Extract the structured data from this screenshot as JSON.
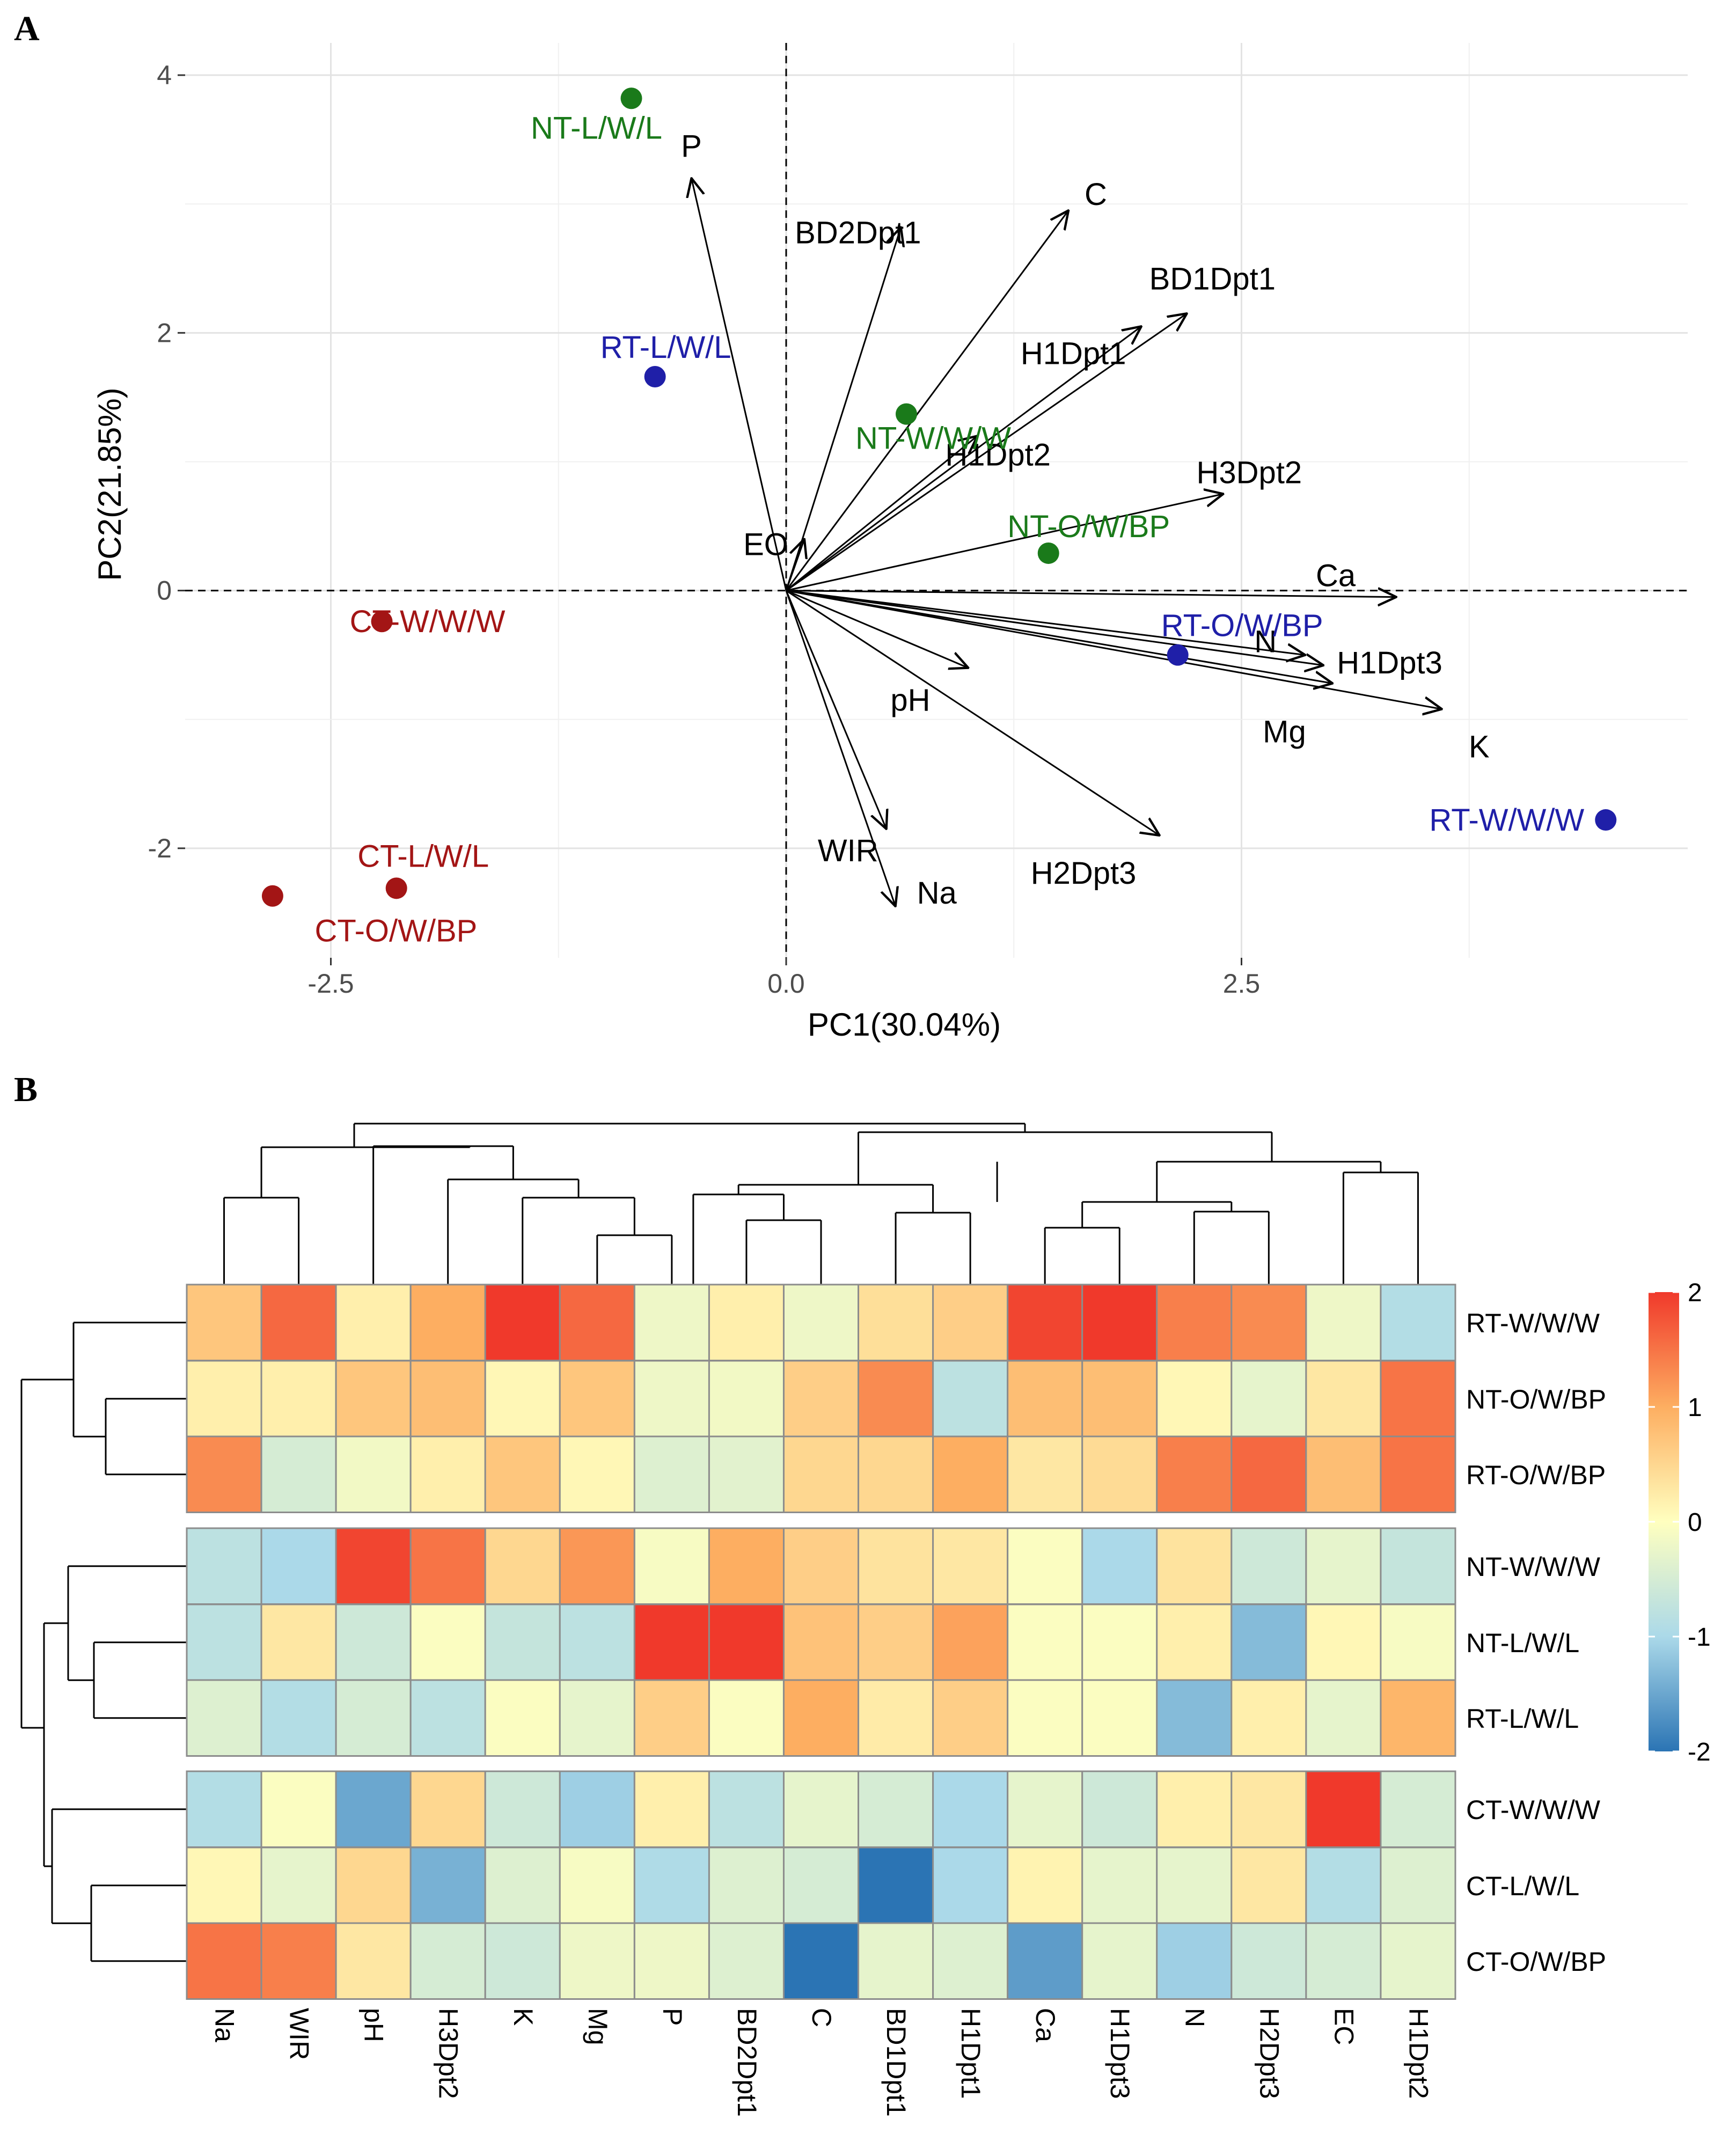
{
  "panel_labels": {
    "a": "A",
    "b": "B"
  },
  "chart_data": [
    {
      "type": "scatter",
      "subtype": "pca-biplot",
      "title": "",
      "xlabel": "PC1(30.04%)",
      "ylabel": "PC2(21.85%)",
      "xlim": [
        -3.3,
        4.95
      ],
      "ylim": [
        -2.85,
        4.25
      ],
      "xticks": [
        -2.5,
        0.0,
        2.5
      ],
      "xtick_labels": [
        "-2.5",
        "0.0",
        "2.5"
      ],
      "yticks": [
        -2,
        0,
        2,
        4
      ],
      "ytick_labels": [
        "-2",
        "0",
        "2",
        "4"
      ],
      "grid": true,
      "zero_lines": "dashed",
      "group_colors": {
        "NT": "#1a7a1a",
        "RT": "#1f1fa8",
        "CT": "#a31515"
      },
      "points": [
        {
          "label": "NT-L/W/L",
          "group": "NT",
          "x": -0.85,
          "y": 3.82
        },
        {
          "label": "RT-L/W/L",
          "group": "RT",
          "x": -0.72,
          "y": 1.66
        },
        {
          "label": "NT-W/W/W",
          "group": "NT",
          "x": 0.66,
          "y": 1.37
        },
        {
          "label": "NT-O/W/BP",
          "group": "NT",
          "x": 1.44,
          "y": 0.29
        },
        {
          "label": "CT-W/W/W",
          "group": "CT",
          "x": -2.22,
          "y": -0.24
        },
        {
          "label": "RT-O/W/BP",
          "group": "RT",
          "x": 2.15,
          "y": -0.5
        },
        {
          "label": "RT-W/W/W",
          "group": "RT",
          "x": 4.5,
          "y": -1.78
        },
        {
          "label": "CT-L/W/L",
          "group": "CT",
          "x": -2.14,
          "y": -2.31
        },
        {
          "label": "CT-O/W/BP",
          "group": "CT",
          "x": -2.82,
          "y": -2.37
        }
      ],
      "loadings": [
        {
          "label": "P",
          "x": -0.52,
          "y": 3.2
        },
        {
          "label": "C",
          "x": 1.55,
          "y": 2.95
        },
        {
          "label": "BD2Dpt1",
          "x": 0.63,
          "y": 2.82
        },
        {
          "label": "BD1Dpt1",
          "x": 2.2,
          "y": 2.15
        },
        {
          "label": "H1Dpt1",
          "x": 1.95,
          "y": 2.05
        },
        {
          "label": "H1Dpt2",
          "x": 1.05,
          "y": 1.2
        },
        {
          "label": "H3Dpt2",
          "x": 2.4,
          "y": 0.75
        },
        {
          "label": "EO",
          "x": 0.1,
          "y": 0.4
        },
        {
          "label": "Ca",
          "x": 3.35,
          "y": -0.05
        },
        {
          "label": "N",
          "x": 2.85,
          "y": -0.5
        },
        {
          "label": "H1Dpt3",
          "x": 2.95,
          "y": -0.58
        },
        {
          "label": "Mg",
          "x": 3.0,
          "y": -0.72
        },
        {
          "label": "K",
          "x": 3.6,
          "y": -0.92
        },
        {
          "label": "pH",
          "x": 1.0,
          "y": -0.6
        },
        {
          "label": "H2Dpt3",
          "x": 2.05,
          "y": -1.9
        },
        {
          "label": "WIR",
          "x": 0.55,
          "y": -1.85
        },
        {
          "label": "Na",
          "x": 0.6,
          "y": -2.45
        }
      ]
    },
    {
      "type": "heatmap",
      "title": "",
      "columns": [
        "Na",
        "WIR",
        "pH",
        "H3Dpt2",
        "K",
        "Mg",
        "P",
        "BD2Dpt1",
        "C",
        "BD1Dpt1",
        "H1Dpt1",
        "Ca",
        "H1Dpt3",
        "N",
        "H2Dpt3",
        "EC",
        "H1Dpt2"
      ],
      "rows": [
        "RT-W/W/W",
        "NT-O/W/BP",
        "RT-O/W/BP",
        "NT-W/W/W",
        "NT-L/W/L",
        "RT-L/W/L",
        "CT-W/W/W",
        "CT-L/W/L",
        "CT-O/W/BP"
      ],
      "row_groups": [
        [
          0,
          1,
          2
        ],
        [
          3,
          4,
          5
        ],
        [
          6,
          7,
          8
        ]
      ],
      "values": [
        [
          0.7,
          1.6,
          0.2,
          1.0,
          2.2,
          1.6,
          -0.2,
          0.2,
          -0.2,
          0.4,
          0.6,
          1.9,
          2.1,
          1.4,
          1.3,
          -0.2,
          -0.9
        ],
        [
          0.2,
          0.2,
          0.7,
          0.8,
          0.1,
          0.7,
          -0.2,
          -0.15,
          0.6,
          1.3,
          -0.8,
          0.8,
          0.8,
          0.1,
          -0.3,
          0.3,
          1.5
        ],
        [
          1.3,
          -0.5,
          -0.15,
          0.2,
          0.7,
          0.1,
          -0.4,
          -0.35,
          0.5,
          0.5,
          1.0,
          0.3,
          0.45,
          1.4,
          1.6,
          0.8,
          1.5
        ],
        [
          -0.8,
          -1.0,
          1.9,
          1.5,
          0.5,
          1.2,
          -0.1,
          1.0,
          0.6,
          0.35,
          0.3,
          -0.05,
          -1.0,
          0.35,
          -0.6,
          -0.3,
          -0.7
        ],
        [
          -0.8,
          0.3,
          -0.6,
          -0.05,
          -0.7,
          -0.8,
          2.25,
          2.2,
          0.75,
          0.6,
          1.1,
          -0.05,
          -0.05,
          0.2,
          -1.3,
          0.1,
          -0.1
        ],
        [
          -0.4,
          -0.9,
          -0.5,
          -0.8,
          -0.05,
          -0.3,
          0.6,
          -0.05,
          1.0,
          0.25,
          0.6,
          -0.05,
          -0.05,
          -1.3,
          0.2,
          -0.3,
          0.9
        ],
        [
          -0.9,
          -0.05,
          -1.5,
          0.5,
          -0.6,
          -1.1,
          0.2,
          -0.8,
          -0.3,
          -0.5,
          -1.0,
          -0.3,
          -0.6,
          0.2,
          0.3,
          2.25,
          -0.5
        ],
        [
          0.1,
          -0.3,
          0.5,
          -1.4,
          -0.4,
          -0.1,
          -0.95,
          -0.4,
          -0.5,
          -2.0,
          -1.0,
          0.15,
          -0.3,
          -0.3,
          0.3,
          -0.9,
          -0.4
        ],
        [
          1.5,
          1.4,
          0.3,
          -0.5,
          -0.6,
          -0.2,
          -0.2,
          -0.4,
          -2.0,
          -0.3,
          -0.4,
          -1.6,
          -0.3,
          -1.1,
          -0.6,
          -0.5,
          -0.3
        ]
      ],
      "colorbar": {
        "min": -2,
        "max": 2,
        "ticks": [
          2,
          1,
          0,
          -1,
          -2
        ],
        "tick_labels": [
          "2",
          "1",
          "0",
          "-1",
          "-2"
        ],
        "colors": [
          "#2b74b4",
          "#abd9e9",
          "#ffffbf",
          "#fdae61",
          "#f0392b"
        ]
      },
      "dendrogram": "hierarchical clustering on rows and columns"
    }
  ]
}
